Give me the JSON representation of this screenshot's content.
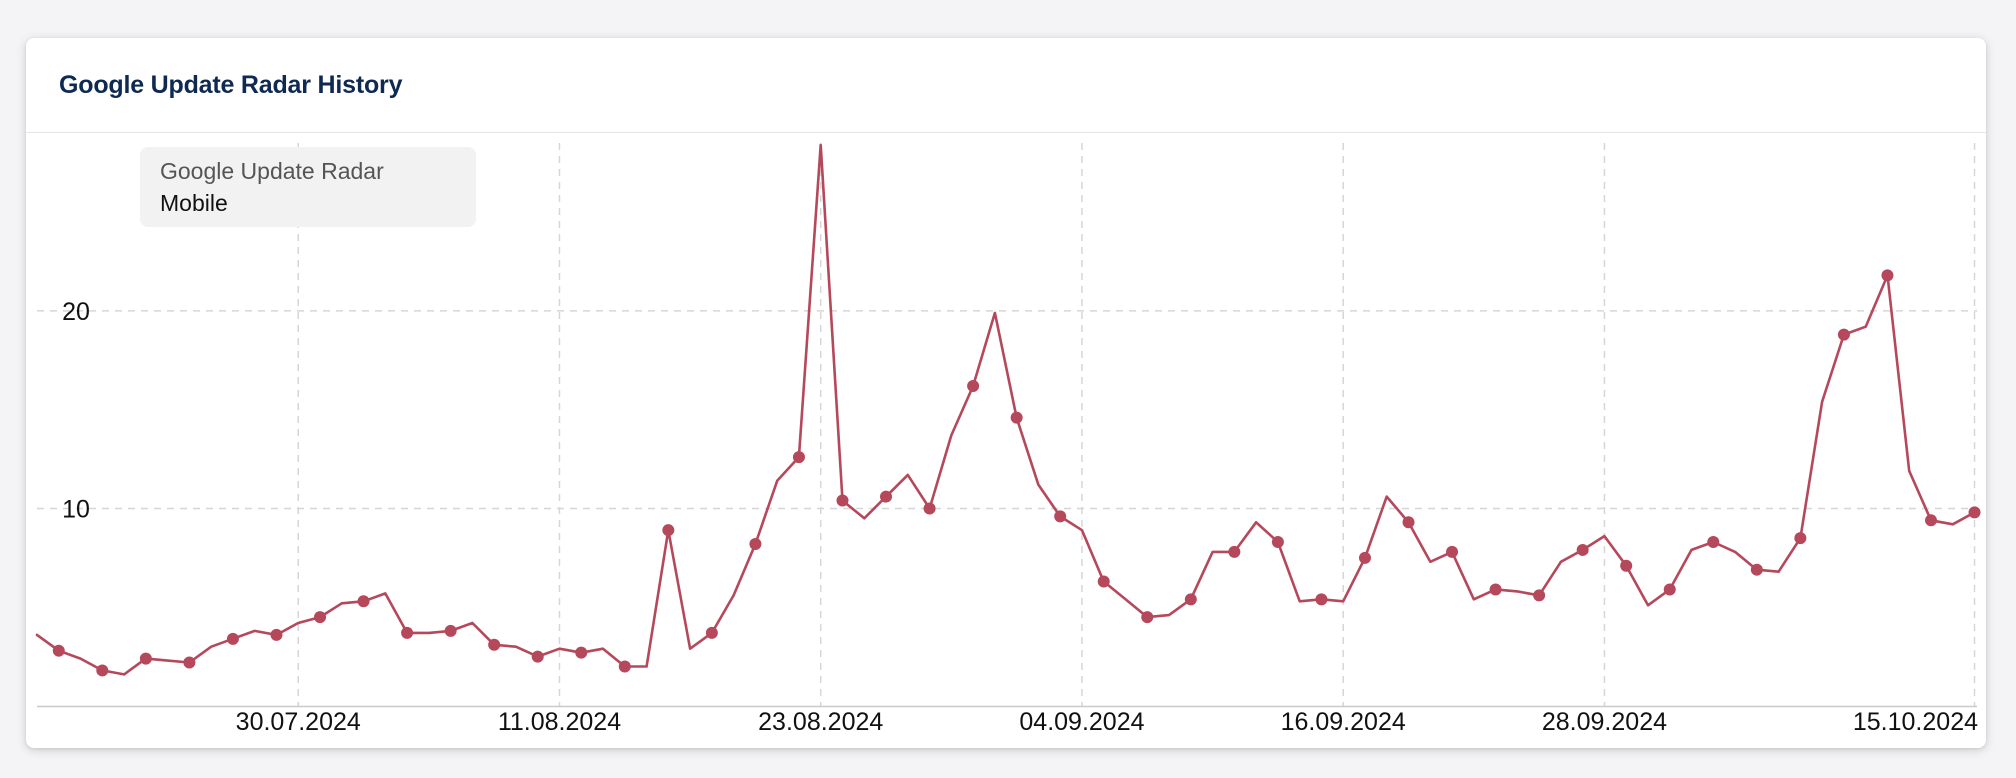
{
  "card": {
    "title": "Google Update Radar History"
  },
  "chart_data": {
    "type": "line",
    "legend": {
      "series_name": "Google Update Radar",
      "series_sub": "Mobile",
      "placement": "top-left"
    },
    "x_start": "18.07.2024",
    "x_end": "15.10.2024",
    "x_ticks": [
      "30.07.2024",
      "11.08.2024",
      "23.08.2024",
      "04.09.2024",
      "16.09.2024",
      "28.09.2024",
      "15.10.2024"
    ],
    "y_ticks": [
      10,
      20
    ],
    "ylim": [
      0,
      28.5
    ],
    "grid": true,
    "series": [
      {
        "color": "#b5485a",
        "values": [
          3.6,
          2.8,
          2.4,
          1.8,
          1.6,
          2.4,
          2.3,
          2.2,
          3.0,
          3.4,
          3.8,
          3.6,
          4.2,
          4.5,
          5.2,
          5.3,
          5.7,
          3.7,
          3.7,
          3.8,
          4.2,
          3.1,
          3.0,
          2.5,
          2.9,
          2.7,
          2.9,
          2.0,
          2.0,
          8.9,
          2.9,
          3.7,
          5.6,
          8.2,
          11.4,
          12.6,
          28.4,
          10.4,
          9.5,
          10.6,
          11.7,
          10.0,
          13.7,
          16.2,
          19.9,
          14.6,
          11.2,
          9.6,
          8.9,
          6.3,
          5.4,
          4.5,
          4.6,
          5.4,
          7.8,
          7.8,
          9.3,
          8.3,
          5.3,
          5.4,
          5.3,
          7.5,
          10.6,
          9.3,
          7.3,
          7.8,
          5.4,
          5.9,
          5.8,
          5.6,
          7.3,
          7.9,
          8.6,
          7.1,
          5.1,
          5.9,
          7.9,
          8.3,
          7.8,
          6.9,
          6.8,
          8.5,
          15.4,
          18.8,
          19.2,
          21.8,
          11.9,
          9.4,
          9.2,
          9.8
        ],
        "markers": [
          1,
          3,
          5,
          7,
          9,
          11,
          13,
          15,
          17,
          19,
          21,
          23,
          25,
          27,
          29,
          31,
          33,
          35,
          37,
          39,
          41,
          43,
          45,
          47,
          49,
          51,
          53,
          55,
          57,
          59,
          61,
          63,
          65,
          67,
          69,
          71,
          73,
          75,
          77,
          79,
          81,
          83,
          85,
          87,
          89
        ]
      }
    ]
  }
}
